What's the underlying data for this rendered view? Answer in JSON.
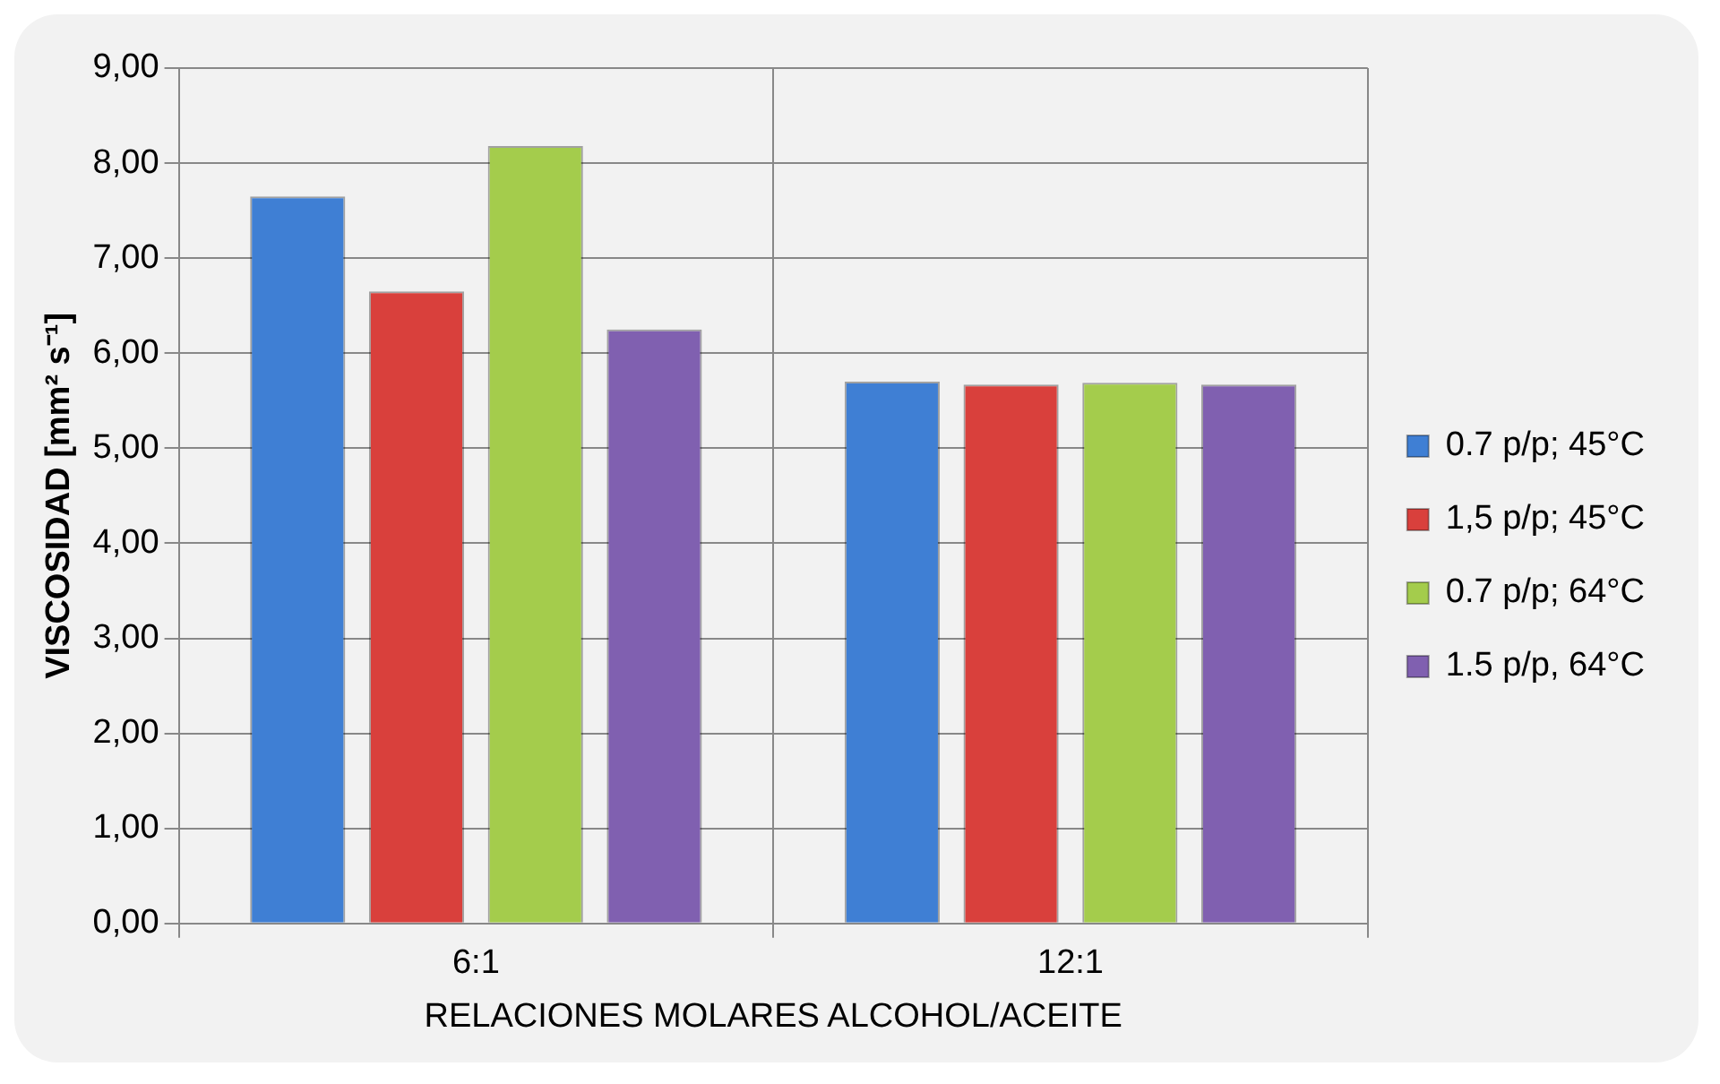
{
  "chart_data": {
    "type": "bar",
    "xlabel": "RELACIONES MOLARES ALCOHOL/ACEITE",
    "ylabel": "VISCOSIDAD [mm² s⁻¹]",
    "categories": [
      "6:1",
      "12:1"
    ],
    "series": [
      {
        "name": "0.7 p/p; 45°C",
        "color": "#3f7fd4",
        "values": [
          7.65,
          5.7
        ]
      },
      {
        "name": "1,5 p/p; 45°C",
        "color": "#d9403c",
        "values": [
          6.65,
          5.67
        ]
      },
      {
        "name": "0.7 p/p; 64°C",
        "color": "#a4cc4c",
        "values": [
          8.18,
          5.69
        ]
      },
      {
        "name": "1.5 p/p, 64°C",
        "color": "#8060b0",
        "values": [
          6.25,
          5.67
        ]
      }
    ],
    "ylim": [
      0,
      9
    ],
    "yticks": [
      {
        "value": 0,
        "label": "0,00"
      },
      {
        "value": 1,
        "label": "1,00"
      },
      {
        "value": 2,
        "label": "2,00"
      },
      {
        "value": 3,
        "label": "3,00"
      },
      {
        "value": 4,
        "label": "4,00"
      },
      {
        "value": 5,
        "label": "5,00"
      },
      {
        "value": 6,
        "label": "6,00"
      },
      {
        "value": 7,
        "label": "7,00"
      },
      {
        "value": 8,
        "label": "8,00"
      },
      {
        "value": 9,
        "label": "9,00"
      }
    ],
    "grid": true,
    "legend": "right"
  }
}
